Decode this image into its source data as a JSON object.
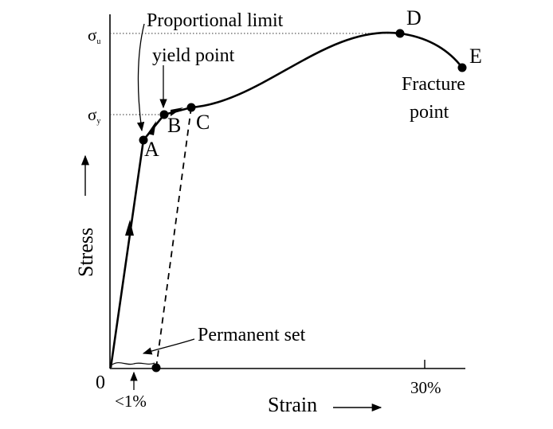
{
  "axes": {
    "x_label": "Strain",
    "y_label": "Stress",
    "origin_label": "0",
    "x_tick_label": "30%",
    "small_strain_label": "<1%",
    "sigma_u": {
      "base": "σ",
      "sub": "u"
    },
    "sigma_y": {
      "base": "σ",
      "sub": "y"
    }
  },
  "points": {
    "A": "A",
    "B": "B",
    "C": "C",
    "D": "D",
    "E": "E"
  },
  "annotations": {
    "proportional_limit": "Proportional limit",
    "yield_point": "yield point",
    "fracture_line1": "Fracture",
    "fracture_line2": "point",
    "permanent_set": "Permanent set"
  }
}
